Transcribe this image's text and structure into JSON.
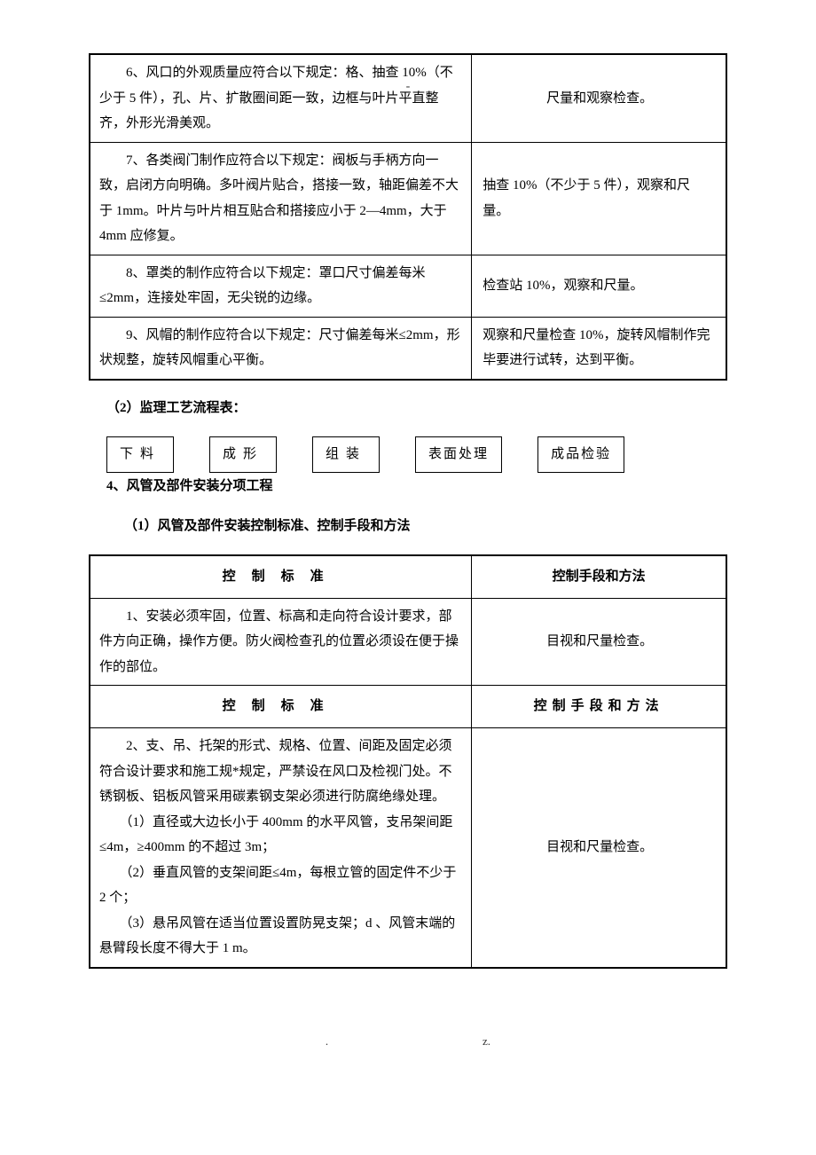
{
  "top_dash": "-",
  "table1": {
    "rows": [
      {
        "standard": "　　6、风口的外观质量应符合以下规定：格、抽查 10%（不少于 5 件），孔、片、扩散圈间距一致，边框与叶片平直整齐，外形光滑美观。",
        "method": "尺量和观察检查。"
      },
      {
        "standard": "　　7、各类阀门制作应符合以下规定：阀板与手柄方向一致，启闭方向明确。多叶阀片贴合，搭接一致，轴距偏差不大于 1mm。叶片与叶片相互贴合和搭接应小于 2—4mm，大于 4mm 应修复。",
        "method": "抽查 10%（不少于 5 件），观察和尺量。"
      },
      {
        "standard": "　　8、罩类的制作应符合以下规定：罩口尺寸偏差每米≤2mm，连接处牢固，无尖锐的边缘。",
        "method": "检查站 10%，观察和尺量。"
      },
      {
        "standard": "　　9、风帽的制作应符合以下规定：尺寸偏差每米≤2mm，形状规整，旋转风帽重心平衡。",
        "method": "观察和尺量检查 10%，旋转风帽制作完毕要进行试转，达到平衡。"
      }
    ]
  },
  "section2_title": "（2）监理工艺流程表：",
  "flow": {
    "b1": "下料",
    "b2": "成形",
    "b3": "组装",
    "b4": "表面处理",
    "b5": "成品检验"
  },
  "subheading4": "4、风管及部件安装分项工程",
  "section3_title": "（1）风管及部件安装控制标准、控制手段和方法",
  "table2": {
    "header1_left": "控制标准",
    "header1_right": "控制手段和方法",
    "header2_left": "控制标准",
    "header2_right": "控制手段和方法",
    "rows": [
      {
        "standard": "　　1、安装必须牢固，位置、标高和走向符合设计要求，部件方向正确，操作方便。防火阀检查孔的位置必须设在便于操作的部位。",
        "method": "目视和尺量检查。"
      },
      {
        "standard": "　　2、支、吊、托架的形式、规格、位置、间距及固定必须符合设计要求和施工规*规定，严禁设在风口及检视门处。不锈钢板、铝板风管采用碳素钢支架必须进行防腐绝缘处理。\n　　（1）直径或大边长小于 400mm 的水平风管，支吊架间距≤4m，≥400mm 的不超过 3m；\n　　（2）垂直风管的支架间距≤4m，每根立管的固定件不少于 2 个；\n　　（3）悬吊风管在适当位置设置防晃支架；d 、风管末端的悬臂段长度不得大于 1 m。",
        "method": "目视和尺量检查。"
      }
    ]
  },
  "footer_dot": ".",
  "footer_z": "z."
}
